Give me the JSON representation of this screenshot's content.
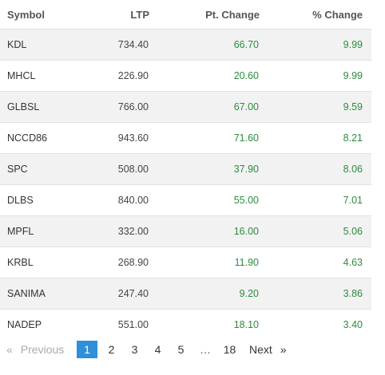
{
  "table": {
    "headers": {
      "symbol": "Symbol",
      "ltp": "LTP",
      "pt_change": "Pt. Change",
      "pct_change": "% Change"
    },
    "rows": [
      {
        "symbol": "KDL",
        "ltp": "734.40",
        "pt_change": "66.70",
        "pct_change": "9.99"
      },
      {
        "symbol": "MHCL",
        "ltp": "226.90",
        "pt_change": "20.60",
        "pct_change": "9.99"
      },
      {
        "symbol": "GLBSL",
        "ltp": "766.00",
        "pt_change": "67.00",
        "pct_change": "9.59"
      },
      {
        "symbol": "NCCD86",
        "ltp": "943.60",
        "pt_change": "71.60",
        "pct_change": "8.21"
      },
      {
        "symbol": "SPC",
        "ltp": "508.00",
        "pt_change": "37.90",
        "pct_change": "8.06"
      },
      {
        "symbol": "DLBS",
        "ltp": "840.00",
        "pt_change": "55.00",
        "pct_change": "7.01"
      },
      {
        "symbol": "MPFL",
        "ltp": "332.00",
        "pt_change": "16.00",
        "pct_change": "5.06"
      },
      {
        "symbol": "KRBL",
        "ltp": "268.90",
        "pt_change": "11.90",
        "pct_change": "4.63"
      },
      {
        "symbol": "SANIMA",
        "ltp": "247.40",
        "pt_change": "9.20",
        "pct_change": "3.86"
      },
      {
        "symbol": "NADEP",
        "ltp": "551.00",
        "pt_change": "18.10",
        "pct_change": "3.40"
      }
    ]
  },
  "pagination": {
    "prev_arrow": "«",
    "prev_label": "Previous",
    "pages": [
      "1",
      "2",
      "3",
      "4",
      "5"
    ],
    "active_page": "1",
    "ellipsis": "…",
    "last_page": "18",
    "next_label": "Next",
    "next_arrow": "»"
  },
  "colors": {
    "positive": "#2e8b3e",
    "active_page_bg": "#2f8fd8",
    "stripe": "#f2f2f2"
  }
}
